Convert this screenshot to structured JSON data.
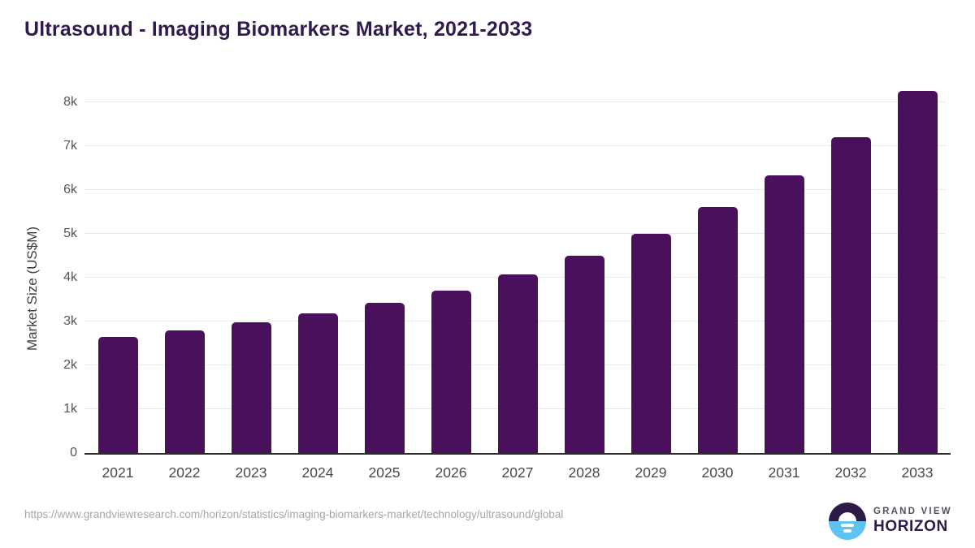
{
  "header": {
    "title": "Ultrasound - Imaging Biomarkers Market, 2021-2033"
  },
  "chart_data": {
    "type": "bar",
    "title": "Ultrasound - Imaging Biomarkers Market, 2021-2033",
    "categories": [
      "2021",
      "2022",
      "2023",
      "2024",
      "2025",
      "2026",
      "2027",
      "2028",
      "2029",
      "2030",
      "2031",
      "2032",
      "2033"
    ],
    "values": [
      2650,
      2790,
      2980,
      3180,
      3420,
      3710,
      4070,
      4500,
      5000,
      5610,
      6330,
      7200,
      8260
    ],
    "xlabel": "",
    "ylabel": "Market Size (US$M)",
    "ylim": [
      0,
      8500
    ],
    "ytick_values": [
      0,
      1000,
      2000,
      3000,
      4000,
      5000,
      6000,
      7000,
      8000
    ],
    "ytick_labels": [
      "0",
      "1k",
      "2k",
      "3k",
      "4k",
      "5k",
      "6k",
      "7k",
      "8k"
    ],
    "grid": true,
    "legend_position": "none"
  },
  "footer": {
    "source_url": "https://www.grandviewresearch.com/horizon/statistics/imaging-biomarkers-market/technology/ultrasound/global",
    "brand": {
      "top": "GRAND VIEW",
      "bottom": "HORIZON"
    }
  },
  "colors": {
    "title": "#311B4D",
    "bar": "#4A105C",
    "gridline": "#E9E9E9",
    "axis_line": "#2B2B2B",
    "axis_text": "#4A4A4A",
    "source_text": "#A6A6A6",
    "brand_top": "#54505C",
    "brand_bottom": "#2E1A47",
    "logo_dark": "#2E1A47",
    "logo_blue": "#5FC3F1"
  }
}
